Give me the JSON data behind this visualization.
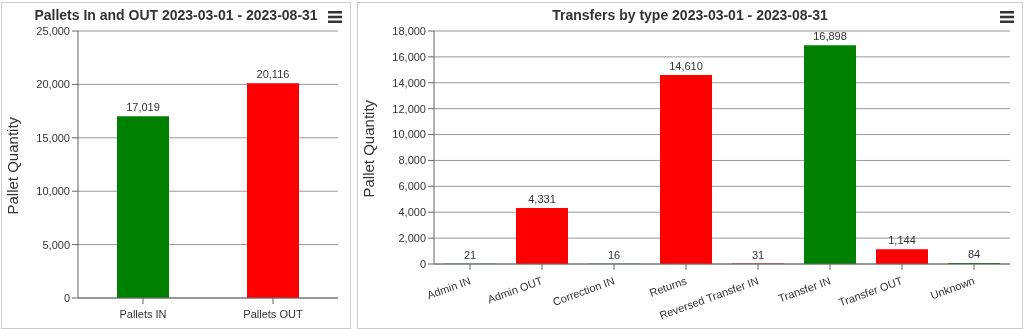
{
  "chart_data": [
    {
      "type": "bar",
      "title": "Pallets In and OUT 2023-03-01 - 2023-08-31",
      "ylabel": "Pallet Quantity",
      "categories": [
        "Pallets IN",
        "Pallets OUT"
      ],
      "values": [
        17019,
        20116
      ],
      "value_labels": [
        "17,019",
        "20,116"
      ],
      "colors": [
        "#008000",
        "#ff0000"
      ],
      "ylim": [
        0,
        25000
      ],
      "yticks": [
        0,
        {
          "value": 5000,
          "label": "5,000"
        },
        {
          "value": 10000,
          "label": "10,000"
        },
        {
          "value": 15000,
          "label": "15,000"
        },
        {
          "value": 20000,
          "label": "20,000"
        },
        {
          "value": 25000,
          "label": "25,000"
        }
      ],
      "grid": "y"
    },
    {
      "type": "bar",
      "title": "Transfers by type 2023-03-01 - 2023-08-31",
      "ylabel": "Pallet Quantity",
      "categories": [
        "Admin IN",
        "Admin OUT",
        "Correction IN",
        "Returns",
        "Reversed Transfer IN",
        "Transfer IN",
        "Transfer OUT",
        "Unknown"
      ],
      "values": [
        21,
        4331,
        16,
        14610,
        31,
        16898,
        1144,
        84
      ],
      "value_labels": [
        "21",
        "4,331",
        "16",
        "14,610",
        "31",
        "16,898",
        "1,144",
        "84"
      ],
      "colors": [
        "#008000",
        "#ff0000",
        "#008000",
        "#ff0000",
        "#ff0000",
        "#008000",
        "#ff0000",
        "#008000"
      ],
      "ylim": [
        0,
        18000
      ],
      "yticks": [
        0,
        {
          "value": 2000,
          "label": "2,000"
        },
        {
          "value": 4000,
          "label": "4,000"
        },
        {
          "value": 6000,
          "label": "6,000"
        },
        {
          "value": 8000,
          "label": "8,000"
        },
        {
          "value": 10000,
          "label": "10,000"
        },
        {
          "value": 12000,
          "label": "12,000"
        },
        {
          "value": 14000,
          "label": "14,000"
        },
        {
          "value": 16000,
          "label": "16,000"
        },
        {
          "value": 18000,
          "label": "18,000"
        }
      ],
      "grid": "y"
    }
  ]
}
